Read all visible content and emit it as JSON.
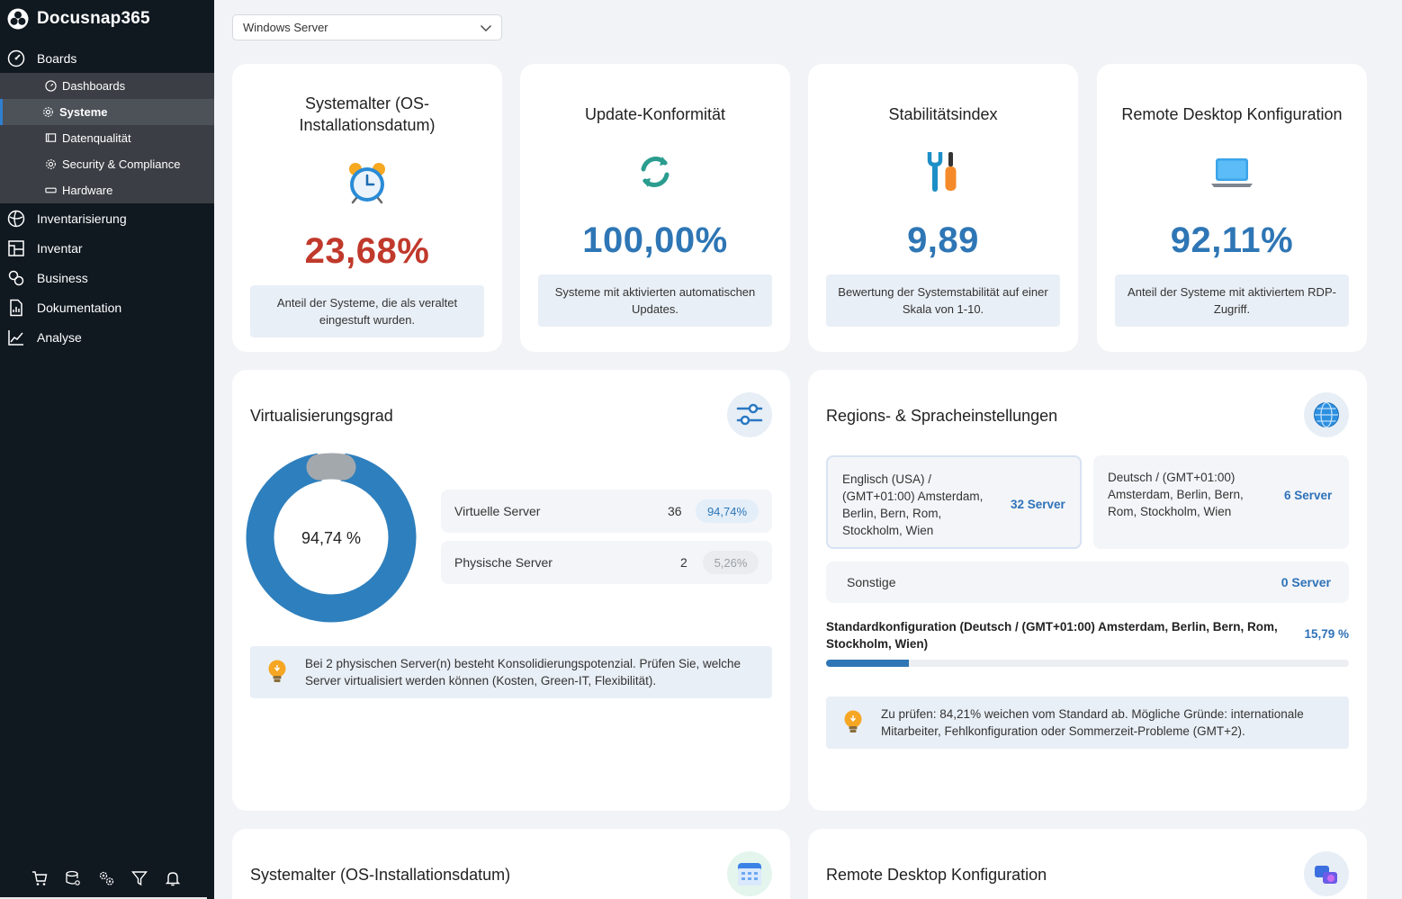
{
  "app": {
    "name": "Docusnap365"
  },
  "sidebar": {
    "boards_label": "Boards",
    "sub_items": [
      "Dashboards",
      "Systeme",
      "Datenqualität",
      "Security & Compliance",
      "Hardware"
    ],
    "items": [
      "Inventarisierung",
      "Inventar",
      "Business",
      "Dokumentation",
      "Analyse"
    ],
    "bottom_icons": [
      "cart-icon",
      "database-gear-icon",
      "gears-icon",
      "filter-icon",
      "bell-icon"
    ]
  },
  "filter": {
    "selected": "Windows Server"
  },
  "kpis": [
    {
      "title": "Systemalter (OS-Installationsdatum)",
      "icon": "alarm-clock-icon",
      "value": "23,68%",
      "color": "#c0392b",
      "desc": "Anteil der Systeme, die als veraltet eingestuft wurden."
    },
    {
      "title": "Update-Konformität",
      "icon": "refresh-icon",
      "value": "100,00%",
      "color": "#2e76b5",
      "desc": "Systeme mit aktivierten automatischen Updates."
    },
    {
      "title": "Stabilitätsindex",
      "icon": "tools-icon",
      "value": "9,89",
      "color": "#2e76b5",
      "desc": "Bewertung der Systemstabilität auf einer Skala von 1-10."
    },
    {
      "title": "Remote Desktop Konfiguration",
      "icon": "laptop-icon",
      "value": "92,11%",
      "color": "#2e76b5",
      "desc": "Anteil der Systeme mit aktiviertem RDP-Zugriff."
    }
  ],
  "virtualization": {
    "title": "Virtualisierungsgrad",
    "center_label": "94,74 %",
    "rows": [
      {
        "label": "Virtuelle Server",
        "count": "36",
        "pct": "94,74%"
      },
      {
        "label": "Physische Server",
        "count": "2",
        "pct": "5,26%"
      }
    ],
    "hint": "Bei 2 physischen Server(n) besteht Konsolidierungspotenzial. Prüfen Sie, welche Server virtualisiert werden können (Kosten, Green-IT, Flexibilität)."
  },
  "chart_data": {
    "type": "pie",
    "categories": [
      "Virtuelle Server",
      "Physische Server"
    ],
    "values": [
      36,
      2
    ],
    "percentages": [
      94.74,
      5.26
    ],
    "colors": [
      "#2e7fbd",
      "#a3a8ad"
    ]
  },
  "regions": {
    "title": "Regions- & Spracheinstellungen",
    "boxes": [
      {
        "label": "Englisch (USA) / (GMT+01:00) Amsterdam, Berlin, Bern, Rom, Stockholm, Wien",
        "count": "32 Server"
      },
      {
        "label": "Deutsch / (GMT+01:00) Amsterdam, Berlin, Bern, Rom, Stockholm, Wien",
        "count": "6 Server"
      }
    ],
    "other": {
      "label": "Sonstige",
      "count": "0 Server"
    },
    "standard": {
      "label": "Standardkonfiguration (Deutsch / (GMT+01:00) Amsterdam, Berlin, Bern, Rom, Stockholm, Wien)",
      "pct": "15,79 %",
      "fraction": 0.1579
    },
    "hint": "Zu prüfen: 84,21% weichen vom Standard ab. Mögliche Gründe: internationale Mitarbeiter, Fehlkonfiguration oder Sommerzeit-Probleme (GMT+2)."
  },
  "bottom_panels": [
    {
      "title": "Systemalter (OS-Installationsdatum)",
      "icon": "calendar-icon"
    },
    {
      "title": "Remote Desktop Konfiguration",
      "icon": "remote-desktop-icon"
    }
  ],
  "colors": {
    "accent": "#2e76b5",
    "danger": "#c0392b",
    "sidebar": "#101820"
  }
}
